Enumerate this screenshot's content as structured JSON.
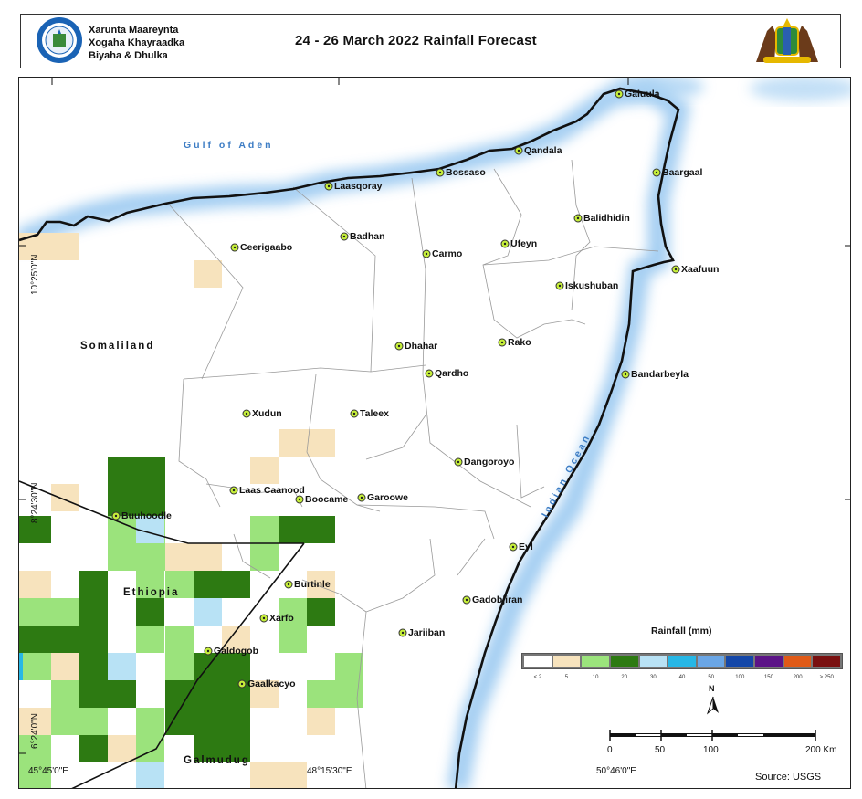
{
  "header": {
    "org_lines": [
      "Xarunta Maareynta",
      "Xogaha Khayraadka",
      "Biyaha & Dhulka"
    ],
    "title": "24 - 26  March 2022 Rainfall Forecast"
  },
  "map": {
    "places": [
      {
        "name": "Galuula"
      },
      {
        "name": "Qandala"
      },
      {
        "name": "Baargaal"
      },
      {
        "name": "Bossaso"
      },
      {
        "name": "Laasqoray"
      },
      {
        "name": "Balidhidin"
      },
      {
        "name": "Badhan"
      },
      {
        "name": "Ceerigaabo"
      },
      {
        "name": "Carmo"
      },
      {
        "name": "Ufeyn"
      },
      {
        "name": "Xaafuun"
      },
      {
        "name": "Iskushuban"
      },
      {
        "name": "Dhahar"
      },
      {
        "name": "Rako"
      },
      {
        "name": "Qardho"
      },
      {
        "name": "Bandarbeyla"
      },
      {
        "name": "Xudun"
      },
      {
        "name": "Taleex"
      },
      {
        "name": "Dangoroyo"
      },
      {
        "name": "Laas Caanood"
      },
      {
        "name": "Boocame"
      },
      {
        "name": "Garoowe"
      },
      {
        "name": "Buuhoodle"
      },
      {
        "name": "Eyl"
      },
      {
        "name": "Burtinle"
      },
      {
        "name": "Gadobjiran"
      },
      {
        "name": "Xarfo"
      },
      {
        "name": "Jariiban"
      },
      {
        "name": "Galdogob"
      },
      {
        "name": "Gaalkacyo"
      }
    ],
    "regions": [
      "Somaliland",
      "Ethiopia",
      "Galmudug"
    ],
    "water_bodies": [
      "Gulf of Aden",
      "Indian Ocean"
    ],
    "coordinates": {
      "lat_top": "10°25'0\"N",
      "lat_mid": "8°24'30\"N",
      "lat_bottom": "6°24'0\"N",
      "lon_left": "45°45'0\"E",
      "lon_mid": "48°15'30\"E",
      "lon_right": "50°46'0\"E"
    }
  },
  "legend": {
    "title": "Rainfall (mm)",
    "classes": [
      {
        "label": "< 2",
        "color": "#ffffff"
      },
      {
        "label": "5",
        "color": "#f7e3bd"
      },
      {
        "label": "10",
        "color": "#9be37c"
      },
      {
        "label": "20",
        "color": "#2d7a12"
      },
      {
        "label": "30",
        "color": "#b8e2f5"
      },
      {
        "label": "40",
        "color": "#27b7e6"
      },
      {
        "label": "50",
        "color": "#6aa6e6"
      },
      {
        "label": "100",
        "color": "#1447a8"
      },
      {
        "label": "150",
        "color": "#5c1487"
      },
      {
        "label": "200",
        "color": "#e05a17"
      },
      {
        "label": "> 250",
        "color": "#7a1010"
      }
    ]
  },
  "scale_bar": {
    "ticks": [
      "0",
      "50",
      "100",
      "200"
    ],
    "unit": "Km",
    "north_label": "N"
  },
  "source": "Source: USGS"
}
